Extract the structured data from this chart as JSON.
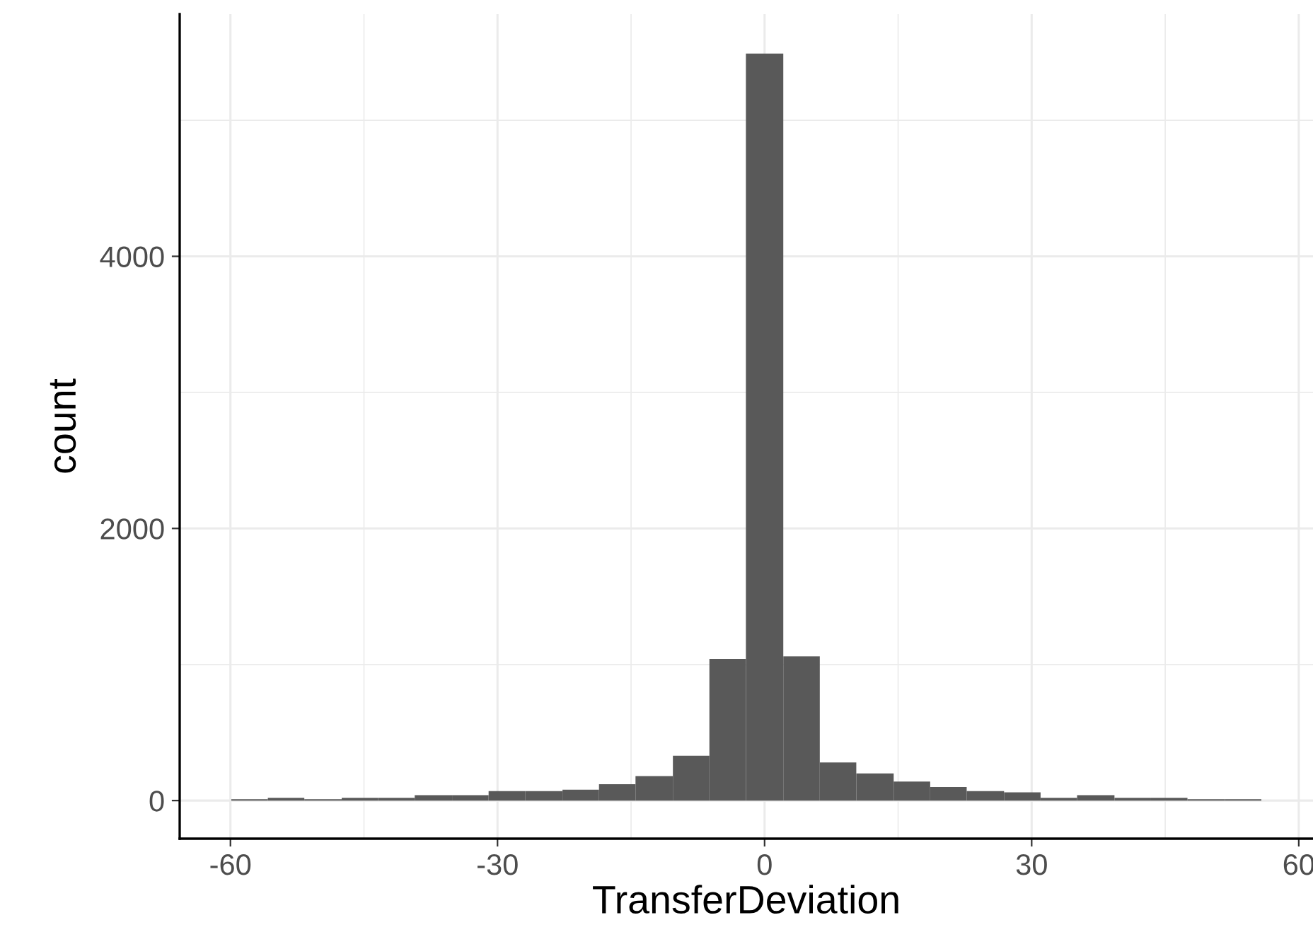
{
  "chart_data": {
    "type": "histogram",
    "xlabel": "TransferDeviation",
    "ylabel": "count",
    "color": "#595959",
    "bins": [
      -59.9,
      -55.8,
      -51.7,
      -47.5,
      -43.4,
      -39.3,
      -35.1,
      -31.0,
      -26.9,
      -22.7,
      -18.6,
      -14.5,
      -10.3,
      -6.2,
      -2.1,
      2.1,
      6.2,
      10.3,
      14.5,
      18.6,
      22.7,
      26.9,
      31.0,
      35.1,
      39.3,
      43.4,
      47.5,
      51.7,
      55.8
    ],
    "values": [
      10,
      20,
      10,
      20,
      20,
      40,
      40,
      70,
      70,
      80,
      120,
      180,
      330,
      1040,
      5490,
      1060,
      280,
      200,
      140,
      100,
      70,
      60,
      20,
      40,
      20,
      20,
      10,
      10
    ],
    "xlim": [
      -65.7,
      61.6
    ],
    "ylim": [
      -280,
      5780
    ],
    "xticks": [
      -60,
      {
        "value": -45,
        "label": null
      },
      -30,
      {
        "value": -15,
        "label": null
      },
      0,
      {
        "value": 15,
        "label": null
      },
      30,
      {
        "value": 45,
        "label": null
      },
      60
    ],
    "yticks": [
      0,
      {
        "value": 1000,
        "label": null
      },
      2000,
      {
        "value": 3000,
        "label": null
      },
      4000,
      {
        "value": 5000,
        "label": null
      }
    ],
    "grid": true
  }
}
